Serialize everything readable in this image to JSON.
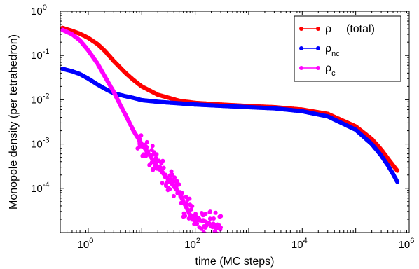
{
  "chart_data": {
    "type": "scatter",
    "xlabel": "time (MC steps)",
    "ylabel": "Monopole density (per tetrahedron)",
    "x_scale": "log",
    "y_scale": "log",
    "xlim": [
      0.3,
      1000000
    ],
    "ylim": [
      1e-05,
      1
    ],
    "x_ticks": [
      {
        "base": "10",
        "exp": "0",
        "value": 1
      },
      {
        "base": "10",
        "exp": "2",
        "value": 100
      },
      {
        "base": "10",
        "exp": "4",
        "value": 10000
      },
      {
        "base": "10",
        "exp": "6",
        "value": 1000000
      }
    ],
    "y_ticks": [
      {
        "base": "10",
        "exp": "0",
        "value": 1
      },
      {
        "base": "10",
        "exp": "-1",
        "value": 0.1
      },
      {
        "base": "10",
        "exp": "-2",
        "value": 0.01
      },
      {
        "base": "10",
        "exp": "-3",
        "value": 0.001
      },
      {
        "base": "10",
        "exp": "-4",
        "value": 0.0001
      }
    ],
    "grid": false,
    "legend_position": "top-right",
    "series": [
      {
        "name": "ρ",
        "name_extra": "(total)",
        "subscript": "",
        "color": "#ff0000",
        "x": [
          0.33,
          0.5,
          0.7,
          1,
          1.5,
          2,
          3,
          5,
          7,
          10,
          20,
          50,
          100,
          300,
          1000,
          3000,
          10000,
          30000,
          100000,
          200000,
          300000,
          400000,
          500000,
          600000
        ],
        "y": [
          0.42,
          0.36,
          0.31,
          0.25,
          0.18,
          0.13,
          0.075,
          0.04,
          0.028,
          0.02,
          0.013,
          0.0095,
          0.0085,
          0.0078,
          0.0072,
          0.0068,
          0.006,
          0.0048,
          0.0025,
          0.0013,
          0.00075,
          0.00047,
          0.00033,
          0.00025
        ]
      },
      {
        "name": "ρ",
        "name_extra": "",
        "subscript": "nc",
        "color": "#0000ff",
        "x": [
          0.33,
          0.5,
          0.7,
          1,
          1.5,
          2,
          3,
          5,
          7,
          10,
          20,
          50,
          100,
          300,
          1000,
          3000,
          10000,
          30000,
          100000,
          200000,
          300000,
          400000,
          500000,
          600000
        ],
        "y": [
          0.05,
          0.044,
          0.038,
          0.03,
          0.022,
          0.018,
          0.014,
          0.012,
          0.011,
          0.0098,
          0.009,
          0.0083,
          0.0078,
          0.0073,
          0.0068,
          0.0064,
          0.0055,
          0.0042,
          0.0021,
          0.001,
          0.00055,
          0.00033,
          0.00021,
          0.00014
        ]
      },
      {
        "name": "ρ",
        "name_extra": "",
        "subscript": "c",
        "color": "#ff00ff",
        "x": [
          0.33,
          0.5,
          0.7,
          1,
          1.5,
          2,
          3,
          4,
          5,
          7,
          10,
          15,
          20,
          30,
          40,
          50,
          60,
          70,
          80,
          100,
          150,
          200,
          300
        ],
        "y": [
          0.38,
          0.3,
          0.22,
          0.13,
          0.065,
          0.035,
          0.015,
          0.0075,
          0.0045,
          0.002,
          0.001,
          0.0005,
          0.0003,
          0.00017,
          0.00011,
          8e-05,
          5e-05,
          3.5e-05,
          2.5e-05,
          2e-05,
          1.8e-05,
          1.5e-05,
          1.3e-05
        ]
      }
    ]
  }
}
